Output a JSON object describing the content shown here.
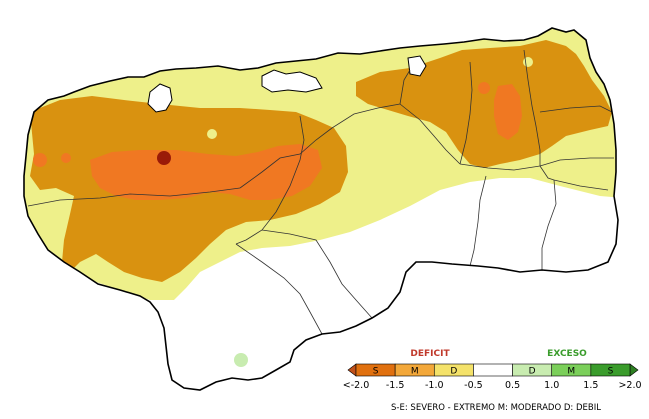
{
  "legend": {
    "deficit_title": "DEFICIT",
    "exceso_title": "EXCESO",
    "boxes": [
      {
        "letter": "S",
        "color": "#e0700f"
      },
      {
        "letter": "M",
        "color": "#f3a83a"
      },
      {
        "letter": "D",
        "color": "#f4e26a"
      },
      {
        "letter": "",
        "color": "#ffffff"
      },
      {
        "letter": "D",
        "color": "#c8ecb0"
      },
      {
        "letter": "M",
        "color": "#7bcf5a"
      },
      {
        "letter": "S",
        "color": "#3a9c2c"
      }
    ],
    "ticks": [
      "<-2.0",
      "-1.5",
      "-1.0",
      "-0.5",
      "0.5",
      "1.0",
      "1.5",
      ">2.0"
    ],
    "footnote": "S-E: SEVERO - EXTREMO  M: MODERADO  D: DEBIL"
  },
  "colors": {
    "extreme": "#9a1a08",
    "severe": "#f07822",
    "moderate": "#d99210",
    "weak": "#eef08a",
    "wet_weak": "#c8ecb0",
    "outline": "#000000",
    "deficit_title": "#c0392b",
    "exceso_title": "#3a9c2c"
  }
}
